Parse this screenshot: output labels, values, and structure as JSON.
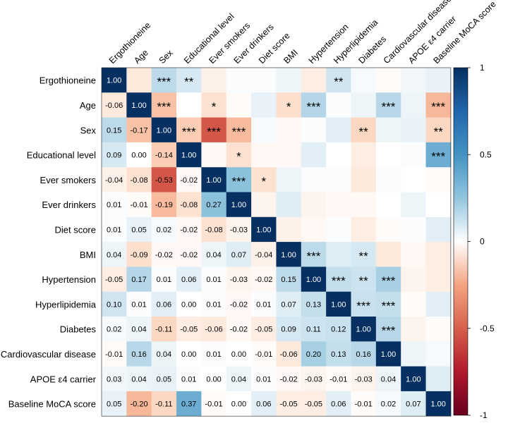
{
  "chart_data": {
    "type": "heatmap",
    "variables": [
      "Ergothioneine",
      "Age",
      "Sex",
      "Educational level",
      "Ever smokers",
      "Ever drinkers",
      "Diet score",
      "BMI",
      "Hypertension",
      "Hyperlipidemia",
      "Diabetes",
      "Cardiovascular disease",
      "APOE ε4 carrier",
      "Baseline MoCA score"
    ],
    "lower_triangle_values": [
      [
        1.0
      ],
      [
        -0.06,
        1.0
      ],
      [
        0.15,
        -0.17,
        1.0
      ],
      [
        0.09,
        0.0,
        -0.14,
        1.0
      ],
      [
        -0.04,
        -0.08,
        -0.53,
        -0.02,
        1.0
      ],
      [
        0.01,
        -0.01,
        -0.19,
        -0.08,
        0.27,
        1.0
      ],
      [
        0.01,
        0.05,
        0.02,
        -0.02,
        -0.08,
        -0.03,
        1.0
      ],
      [
        0.04,
        -0.09,
        -0.02,
        -0.02,
        0.04,
        0.07,
        -0.04,
        1.0
      ],
      [
        -0.05,
        0.17,
        0.01,
        0.06,
        0.01,
        -0.03,
        -0.02,
        0.15,
        1.0
      ],
      [
        0.1,
        0.01,
        0.06,
        0.0,
        0.01,
        -0.02,
        0.01,
        0.07,
        0.13,
        1.0
      ],
      [
        0.02,
        0.04,
        -0.11,
        -0.05,
        -0.06,
        -0.02,
        -0.05,
        0.09,
        0.11,
        0.12,
        1.0
      ],
      [
        -0.01,
        0.16,
        0.04,
        0.0,
        0.01,
        0.0,
        -0.01,
        -0.06,
        0.2,
        0.13,
        0.16,
        1.0
      ],
      [
        0.03,
        0.04,
        0.05,
        0.01,
        0.0,
        0.04,
        0.01,
        -0.02,
        -0.03,
        -0.01,
        -0.03,
        0.04,
        1.0
      ],
      [
        0.05,
        -0.2,
        -0.11,
        0.37,
        -0.01,
        0.0,
        0.06,
        -0.05,
        -0.05,
        0.06,
        -0.01,
        0.02,
        0.07,
        1.0
      ]
    ],
    "significance_upper": [
      {
        "row": 0,
        "col": 2,
        "mark": "***"
      },
      {
        "row": 0,
        "col": 3,
        "mark": "**"
      },
      {
        "row": 0,
        "col": 9,
        "mark": "**"
      },
      {
        "row": 1,
        "col": 2,
        "mark": "***"
      },
      {
        "row": 1,
        "col": 4,
        "mark": "*"
      },
      {
        "row": 1,
        "col": 7,
        "mark": "*"
      },
      {
        "row": 1,
        "col": 8,
        "mark": "***"
      },
      {
        "row": 1,
        "col": 11,
        "mark": "***"
      },
      {
        "row": 1,
        "col": 13,
        "mark": "***"
      },
      {
        "row": 2,
        "col": 3,
        "mark": "***"
      },
      {
        "row": 2,
        "col": 4,
        "mark": "***"
      },
      {
        "row": 2,
        "col": 5,
        "mark": "***"
      },
      {
        "row": 2,
        "col": 10,
        "mark": "**"
      },
      {
        "row": 2,
        "col": 13,
        "mark": "**"
      },
      {
        "row": 3,
        "col": 5,
        "mark": "*"
      },
      {
        "row": 3,
        "col": 13,
        "mark": "***"
      },
      {
        "row": 4,
        "col": 5,
        "mark": "***"
      },
      {
        "row": 4,
        "col": 6,
        "mark": "*"
      },
      {
        "row": 7,
        "col": 8,
        "mark": "***"
      },
      {
        "row": 7,
        "col": 10,
        "mark": "**"
      },
      {
        "row": 8,
        "col": 9,
        "mark": "***"
      },
      {
        "row": 8,
        "col": 10,
        "mark": "**"
      },
      {
        "row": 8,
        "col": 11,
        "mark": "***"
      },
      {
        "row": 9,
        "col": 10,
        "mark": "***"
      },
      {
        "row": 9,
        "col": 11,
        "mark": "***"
      },
      {
        "row": 10,
        "col": 11,
        "mark": "***"
      }
    ],
    "colorbar": {
      "range": [
        -1,
        1
      ],
      "ticks": [
        "1",
        "0.5",
        "0",
        "-0.5",
        "-1"
      ]
    },
    "colors": {
      "negative": "#67001f",
      "mid": "#ffffff",
      "positive": "#053061"
    }
  }
}
